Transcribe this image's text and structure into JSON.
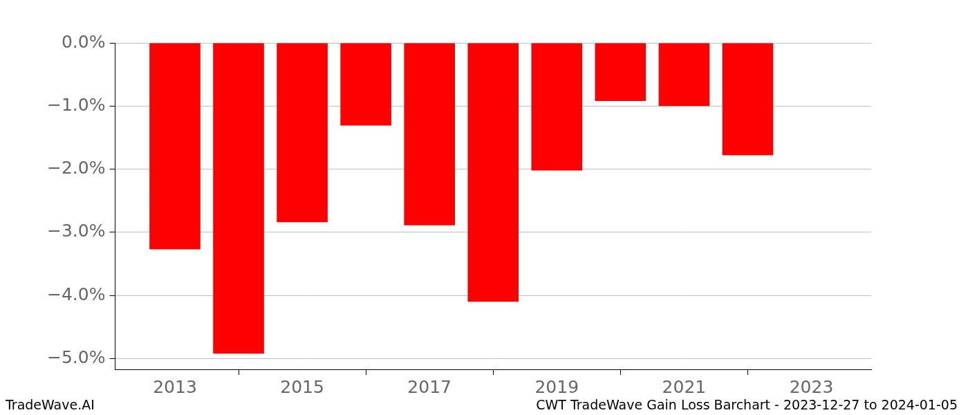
{
  "chart_data": {
    "type": "bar",
    "title": "CWT TradeWave Gain Loss Barchart - 2023-12-27 to 2024-01-05",
    "annotations": [
      "TradeWave.AI"
    ],
    "x": [
      2013,
      2014,
      2015,
      2016,
      2017,
      2018,
      2019,
      2020,
      2021,
      2022
    ],
    "values": [
      -3.27,
      -4.92,
      -2.84,
      -1.31,
      -2.89,
      -4.1,
      -2.02,
      -0.92,
      -1.0,
      -1.78
    ],
    "color": "#ff0000",
    "xlim": [
      2012.06,
      2023.94
    ],
    "xticks": [
      2013,
      2015,
      2017,
      2019,
      2021,
      2023
    ],
    "ylim": [
      -5.17,
      0
    ],
    "yticks": [
      {
        "value": 0,
        "label": "0.0%"
      },
      {
        "value": -1,
        "label": "−1.0%"
      },
      {
        "value": -2,
        "label": "−2.0%"
      },
      {
        "value": -3,
        "label": "−3.0%"
      },
      {
        "value": -4,
        "label": "−4.0%"
      },
      {
        "value": -5,
        "label": "−5.0%"
      }
    ],
    "grid": true
  }
}
